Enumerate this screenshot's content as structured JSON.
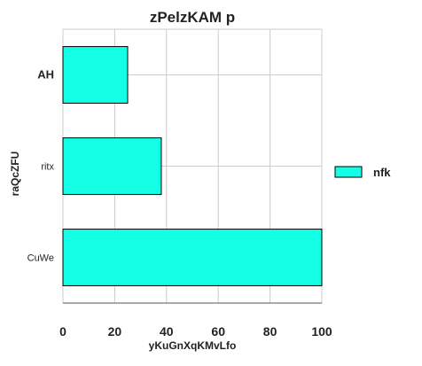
{
  "chart_data": {
    "type": "bar",
    "orientation": "horizontal",
    "title": "zPelzKAM p",
    "xlabel": "yKuGnXqKMvLfo",
    "ylabel": "raQcZFU",
    "categories": [
      "AH",
      "ritx",
      "CuWe"
    ],
    "series": [
      {
        "name": "nfk",
        "values": [
          25,
          38,
          100
        ]
      }
    ],
    "xlim": [
      0,
      100
    ],
    "xticks": [
      0,
      20,
      40,
      60,
      80,
      100
    ],
    "grid": true,
    "legend_position": "right",
    "colors": {
      "bar": "#13ffe6",
      "bar_edge": "#000000",
      "grid": "#cccccc"
    }
  }
}
